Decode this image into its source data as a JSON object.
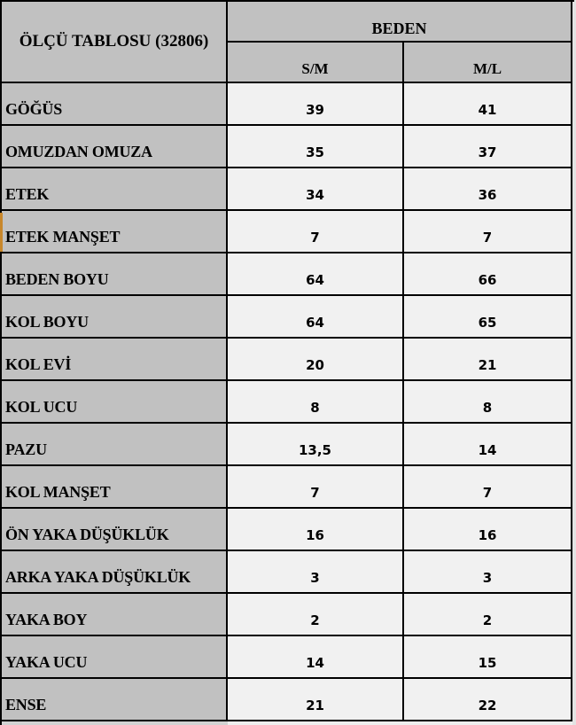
{
  "chart_data": {
    "type": "table",
    "title": "ÖLÇÜ TABLOSU (32806)",
    "group_header": "BEDEN",
    "size_columns": [
      "S/M",
      "M/L"
    ],
    "rows": [
      {
        "label": "GÖĞÜS",
        "values": [
          "39",
          "41"
        ]
      },
      {
        "label": "OMUZDAN OMUZA",
        "values": [
          "35",
          "37"
        ]
      },
      {
        "label": "ETEK",
        "values": [
          "34",
          "36"
        ]
      },
      {
        "label": "ETEK MANŞET",
        "values": [
          "7",
          "7"
        ]
      },
      {
        "label": "BEDEN BOYU",
        "values": [
          "64",
          "66"
        ]
      },
      {
        "label": "KOL BOYU",
        "values": [
          "64",
          "65"
        ]
      },
      {
        "label": "KOL EVİ",
        "values": [
          "20",
          "21"
        ]
      },
      {
        "label": "KOL UCU",
        "values": [
          "8",
          "8"
        ]
      },
      {
        "label": "PAZU",
        "values": [
          "13,5",
          "14"
        ]
      },
      {
        "label": "KOL MANŞET",
        "values": [
          "7",
          "7"
        ]
      },
      {
        "label": "ÖN YAKA DÜŞÜKLÜK",
        "values": [
          "16",
          "16"
        ]
      },
      {
        "label": "ARKA YAKA DÜŞÜKLÜK",
        "values": [
          "3",
          "3"
        ]
      },
      {
        "label": "YAKA BOY",
        "values": [
          "2",
          "2"
        ]
      },
      {
        "label": "YAKA UCU",
        "values": [
          "14",
          "15"
        ]
      },
      {
        "label": "ENSE",
        "values": [
          "21",
          "22"
        ]
      }
    ]
  },
  "colors": {
    "header_bg": "#c1c1c1",
    "label_bg": "#c1c1c1",
    "value_bg": "#f1f1f1",
    "border": "#000000",
    "accent_left_edge": "#c8872b"
  },
  "accent": {
    "row_index": 3,
    "color": "#c8872b"
  }
}
